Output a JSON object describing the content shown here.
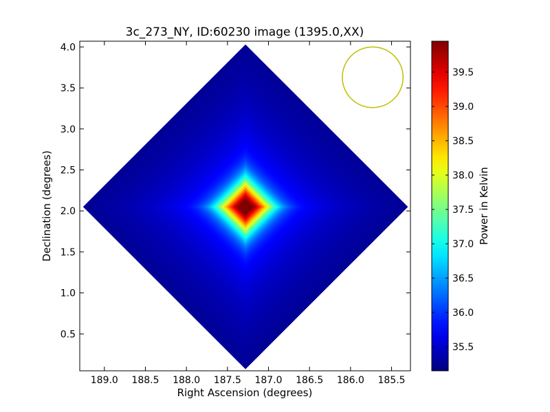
{
  "chart_data": {
    "type": "heatmap",
    "title": "3c_273_NY, ID:60230 image (1395.0,XX)",
    "xlabel": "Right Ascension (degrees)",
    "ylabel": "Declination (degrees)",
    "colorbar_label": "Power in Kelvin",
    "colormap": "jet",
    "xlim": [
      189.3,
      185.27
    ],
    "ylim": [
      0.05,
      4.07
    ],
    "x_inverted": true,
    "x_ticks": [
      189.0,
      188.5,
      188.0,
      187.5,
      187.0,
      186.5,
      186.0,
      185.5
    ],
    "x_tick_labels": [
      "189.0",
      "188.5",
      "188.0",
      "187.5",
      "187.0",
      "186.5",
      "186.0",
      "185.5"
    ],
    "y_ticks": [
      0.5,
      1.0,
      1.5,
      2.0,
      2.5,
      3.0,
      3.5,
      4.0
    ],
    "y_tick_labels": [
      "0.5",
      "1.0",
      "1.5",
      "2.0",
      "2.5",
      "3.0",
      "3.5",
      "4.0"
    ],
    "color_range": [
      35.15,
      39.95
    ],
    "colorbar_ticks": [
      35.5,
      36.0,
      36.5,
      37.0,
      37.5,
      38.0,
      38.5,
      39.0,
      39.5
    ],
    "colorbar_tick_labels": [
      "35.5",
      "36.0",
      "36.5",
      "37.0",
      "37.5",
      "38.0",
      "38.5",
      "39.0",
      "39.5"
    ],
    "map_extent": {
      "center_ra": 187.28,
      "center_dec": 2.05,
      "half_width_deg": 1.98
    },
    "peak": {
      "ra": 187.28,
      "dec": 2.05,
      "value": 39.9
    },
    "background_value": 35.6,
    "beam_circle": {
      "center_ra": 185.73,
      "center_dec": 3.63,
      "radius_deg": 0.37,
      "color": "#bfbf00"
    },
    "grid": false
  }
}
